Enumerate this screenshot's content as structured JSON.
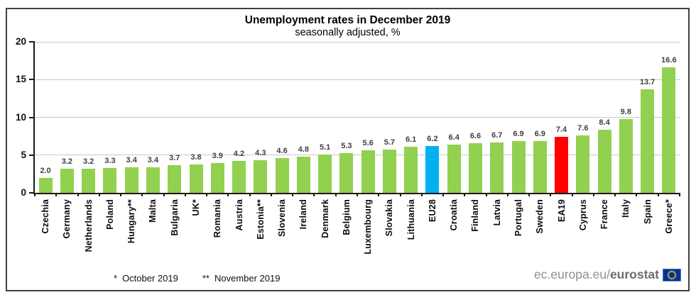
{
  "header": {
    "title": "Unemployment rates in December 2019",
    "subtitle": "seasonally adjusted, %"
  },
  "chart_data": {
    "type": "bar",
    "title": "Unemployment rates in December 2019",
    "subtitle": "seasonally adjusted, %",
    "ylabel": "",
    "xlabel": "",
    "ylim": [
      0,
      20
    ],
    "yticks": [
      0,
      5,
      10,
      15,
      20
    ],
    "grid": "horizontal",
    "legend": "none",
    "categories": [
      "Czechia",
      "Germany",
      "Netherlands",
      "Poland",
      "Hungary**",
      "Malta",
      "Bulgaria",
      "UK*",
      "Romania",
      "Austria",
      "Estonia**",
      "Slovenia",
      "Ireland",
      "Denmark",
      "Belgium",
      "Luxembourg",
      "Slovakia",
      "Lithuania",
      "EU28",
      "Croatia",
      "Finland",
      "Latvia",
      "Portugal",
      "Sweden",
      "EA19",
      "Cyprus",
      "France",
      "Italy",
      "Spain",
      "Greece*"
    ],
    "values": [
      2.0,
      3.2,
      3.2,
      3.3,
      3.4,
      3.4,
      3.7,
      3.8,
      3.9,
      4.2,
      4.3,
      4.6,
      4.8,
      5.1,
      5.3,
      5.6,
      5.7,
      6.1,
      6.2,
      6.4,
      6.6,
      6.7,
      6.9,
      6.9,
      7.4,
      7.6,
      8.4,
      9.8,
      13.7,
      16.6
    ],
    "value_labels": [
      "2.0",
      "3.2",
      "3.2",
      "3.3",
      "3.4",
      "3.4",
      "3.7",
      "3.8",
      "3.9",
      "4.2",
      "4.3",
      "4.6",
      "4.8",
      "5.1",
      "5.3",
      "5.6",
      "5.7",
      "6.1",
      "6.2",
      "6.4",
      "6.6",
      "6.7",
      "6.9",
      "6.9",
      "7.4",
      "7.6",
      "8.4",
      "9.8",
      "13.7",
      "16.6"
    ],
    "bar_colors": {
      "default": "#92D050",
      "EU28": "#00B0F0",
      "EA19": "#FF0000"
    },
    "axis_color": "#1a1a1a",
    "gridline_color": "#c8c8c8"
  },
  "footnotes": {
    "note1_marker": "*",
    "note1_text": "October 2019",
    "note2_marker": "**",
    "note2_text": "November 2019"
  },
  "footer": {
    "url_prefix": "ec.europa.eu/",
    "url_bold": "eurostat",
    "logo": "eu-flag-icon",
    "flag_blue": "#003399",
    "flag_star_color": "#FFCC00"
  }
}
